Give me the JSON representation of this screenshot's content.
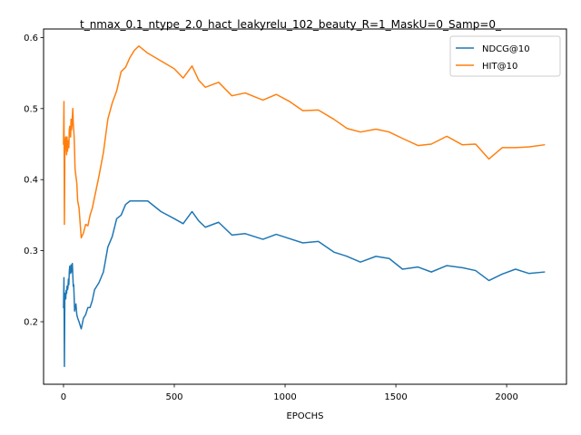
{
  "chart_data": {
    "type": "line",
    "title": "t_nmax_0.1_ntype_2.0_hact_leakyrelu_102_beauty_R=1_MaskU=0_Samp=0_",
    "xlabel": "EPOCHS",
    "ylabel": "",
    "xlim": [
      -90,
      2270
    ],
    "ylim": [
      0.112,
      0.612
    ],
    "xticks": [
      0,
      500,
      1000,
      1500,
      2000
    ],
    "yticks": [
      0.2,
      0.3,
      0.4,
      0.5,
      0.6
    ],
    "xtick_labels": [
      "0",
      "500",
      "1000",
      "1500",
      "2000"
    ],
    "ytick_labels": [
      "0.2",
      "0.3",
      "0.4",
      "0.5",
      "0.6"
    ],
    "legend_position": "top-right",
    "grid": false,
    "series": [
      {
        "name": "NDCG@10",
        "color": "#1f77b4",
        "x": [
          0,
          2,
          4,
          6,
          8,
          10,
          12,
          14,
          16,
          18,
          20,
          22,
          24,
          26,
          28,
          30,
          32,
          34,
          36,
          38,
          40,
          42,
          44,
          46,
          48,
          50,
          52,
          54,
          56,
          60,
          64,
          70,
          80,
          90,
          100,
          110,
          120,
          130,
          140,
          160,
          180,
          200,
          220,
          240,
          260,
          280,
          300,
          320,
          340,
          380,
          440,
          500,
          540,
          580,
          610,
          640,
          700,
          760,
          820,
          900,
          960,
          1020,
          1080,
          1150,
          1220,
          1280,
          1340,
          1410,
          1470,
          1530,
          1600,
          1660,
          1730,
          1800,
          1860,
          1920,
          1980,
          2040,
          2100,
          2170
        ],
        "y": [
          0.22,
          0.262,
          0.137,
          0.24,
          0.238,
          0.232,
          0.244,
          0.24,
          0.25,
          0.245,
          0.248,
          0.26,
          0.252,
          0.27,
          0.278,
          0.272,
          0.268,
          0.28,
          0.27,
          0.275,
          0.282,
          0.265,
          0.25,
          0.252,
          0.235,
          0.215,
          0.22,
          0.218,
          0.225,
          0.21,
          0.205,
          0.2,
          0.19,
          0.205,
          0.21,
          0.22,
          0.22,
          0.23,
          0.245,
          0.255,
          0.27,
          0.305,
          0.32,
          0.345,
          0.35,
          0.365,
          0.37,
          0.37,
          0.37,
          0.37,
          0.355,
          0.345,
          0.338,
          0.355,
          0.342,
          0.333,
          0.34,
          0.322,
          0.324,
          0.316,
          0.323,
          0.317,
          0.311,
          0.313,
          0.298,
          0.292,
          0.284,
          0.292,
          0.289,
          0.274,
          0.277,
          0.27,
          0.279,
          0.276,
          0.272,
          0.258,
          0.267,
          0.274,
          0.268,
          0.27
        ]
      },
      {
        "name": "HIT@10",
        "color": "#ff7f0e",
        "x": [
          0,
          2,
          4,
          6,
          8,
          10,
          12,
          14,
          16,
          18,
          20,
          22,
          24,
          26,
          28,
          30,
          32,
          34,
          36,
          38,
          40,
          42,
          44,
          46,
          48,
          50,
          52,
          54,
          56,
          60,
          64,
          70,
          80,
          90,
          100,
          110,
          120,
          130,
          140,
          160,
          180,
          200,
          220,
          240,
          260,
          280,
          300,
          320,
          340,
          380,
          440,
          500,
          540,
          580,
          610,
          640,
          700,
          760,
          820,
          900,
          960,
          1020,
          1080,
          1150,
          1220,
          1280,
          1340,
          1410,
          1470,
          1530,
          1600,
          1660,
          1730,
          1800,
          1860,
          1920,
          1980,
          2040,
          2100,
          2170
        ],
        "y": [
          0.45,
          0.51,
          0.337,
          0.44,
          0.455,
          0.46,
          0.445,
          0.435,
          0.46,
          0.44,
          0.45,
          0.455,
          0.445,
          0.47,
          0.475,
          0.465,
          0.46,
          0.485,
          0.47,
          0.475,
          0.49,
          0.5,
          0.48,
          0.47,
          0.46,
          0.44,
          0.415,
          0.41,
          0.405,
          0.395,
          0.37,
          0.36,
          0.318,
          0.325,
          0.337,
          0.335,
          0.35,
          0.36,
          0.375,
          0.405,
          0.438,
          0.485,
          0.508,
          0.525,
          0.552,
          0.558,
          0.572,
          0.582,
          0.588,
          0.578,
          0.567,
          0.556,
          0.543,
          0.56,
          0.54,
          0.53,
          0.537,
          0.518,
          0.522,
          0.512,
          0.52,
          0.51,
          0.497,
          0.498,
          0.485,
          0.472,
          0.467,
          0.471,
          0.467,
          0.458,
          0.448,
          0.45,
          0.461,
          0.449,
          0.45,
          0.429,
          0.445,
          0.445,
          0.446,
          0.449
        ]
      }
    ]
  }
}
